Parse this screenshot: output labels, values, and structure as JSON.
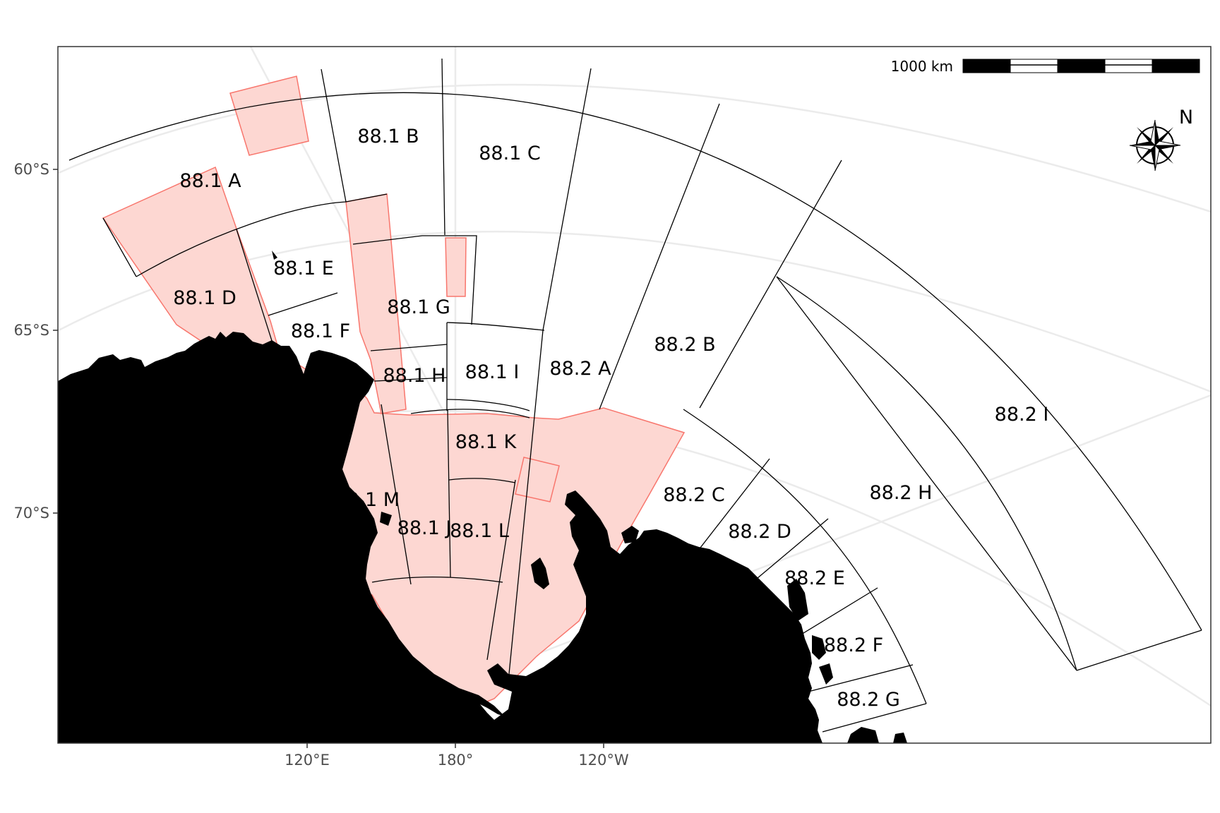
{
  "map": {
    "colors": {
      "closed_fill": "#fdd7d2",
      "closed_stroke": "#f8766d",
      "land": "#000000",
      "graticule": "#ebebeb",
      "region_stroke": "#000000"
    },
    "scale_bar": {
      "label": "1000 km",
      "segments": [
        "black",
        "white",
        "black",
        "white",
        "black"
      ]
    },
    "north_arrow": {
      "label": "N",
      "icon": "compass-rose-icon"
    },
    "latitude_labels": [
      "60°S",
      "65°S",
      "70°S"
    ],
    "longitude_labels": [
      "120°E",
      "180°",
      "120°W"
    ],
    "regions": [
      "88.1 A",
      "88.1 B",
      "88.1 C",
      "88.1 D",
      "88.1 E",
      "88.1 F",
      "88.1 G",
      "88.1 H",
      "88.1 I",
      "88.1 K",
      "88.1 M",
      "88.1 J",
      "88.1 L",
      "88.2 A",
      "88.2 B",
      "88.2 C",
      "88.2 D",
      "88.2 E",
      "88.2 F",
      "88.2 G",
      "88.2 H",
      "88.2 I"
    ]
  }
}
